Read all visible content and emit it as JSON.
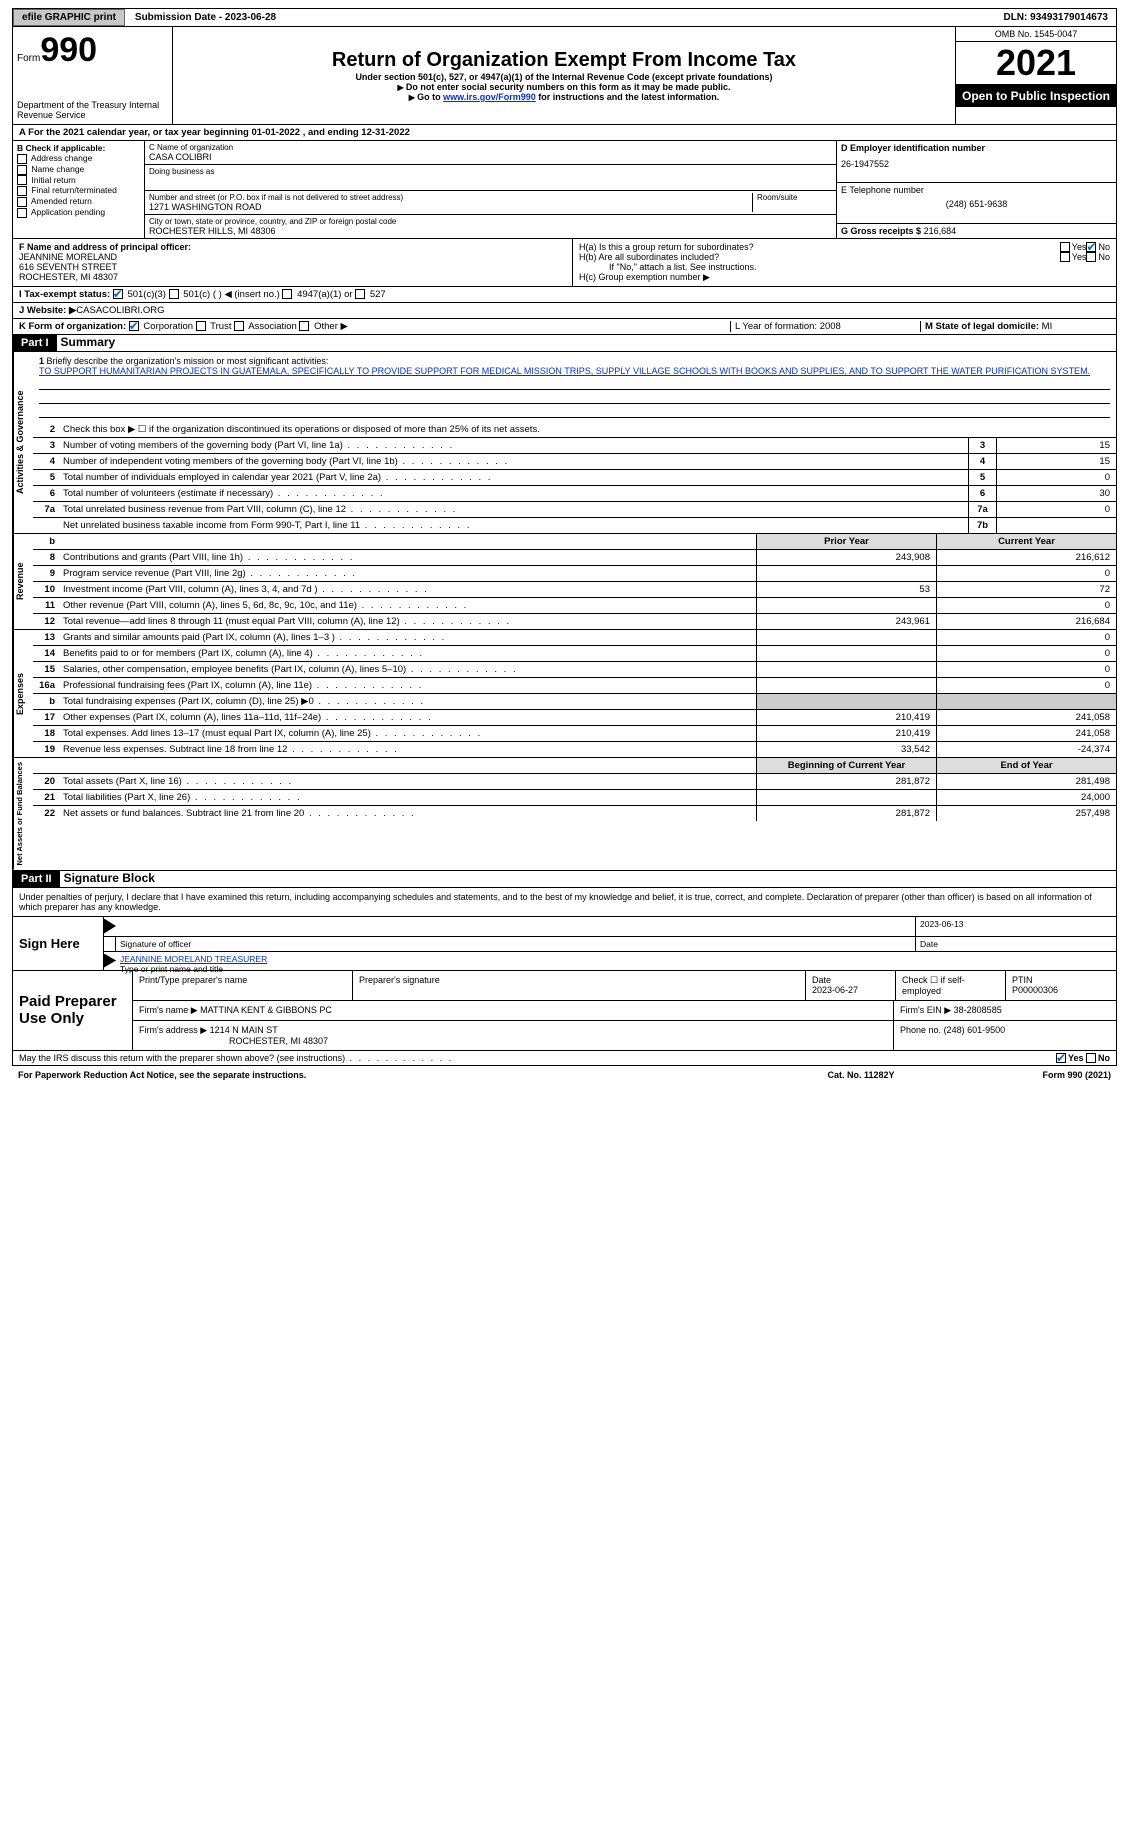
{
  "topbar": {
    "efile": "efile GRAPHIC print",
    "submission": "Submission Date - 2023-06-28",
    "dln": "DLN: 93493179014673"
  },
  "header": {
    "form_label": "Form",
    "form_no": "990",
    "dept": "Department of the Treasury\nInternal Revenue Service",
    "title": "Return of Organization Exempt From Income Tax",
    "sub1": "Under section 501(c), 527, or 4947(a)(1) of the Internal Revenue Code (except private foundations)",
    "sub2": "Do not enter social security numbers on this form as it may be made public.",
    "sub3_pre": "Go to ",
    "sub3_link": "www.irs.gov/Form990",
    "sub3_post": " for instructions and the latest information.",
    "omb": "OMB No. 1545-0047",
    "year": "2021",
    "inspect": "Open to Public Inspection"
  },
  "A": "For the 2021 calendar year, or tax year beginning 01-01-2022   , and ending 12-31-2022",
  "B": {
    "label": "B Check if applicable:",
    "items": [
      "Address change",
      "Name change",
      "Initial return",
      "Final return/terminated",
      "Amended return",
      "Application pending"
    ]
  },
  "C": {
    "name_lbl": "C Name of organization",
    "name": "CASA COLIBRI",
    "dba_lbl": "Doing business as",
    "street_lbl": "Number and street (or P.O. box if mail is not delivered to street address)",
    "room_lbl": "Room/suite",
    "street": "1271 WASHINGTON ROAD",
    "city_lbl": "City or town, state or province, country, and ZIP or foreign postal code",
    "city": "ROCHESTER HILLS, MI  48306"
  },
  "D": {
    "lbl": "D Employer identification number",
    "val": "26-1947552"
  },
  "E": {
    "lbl": "E Telephone number",
    "val": "(248) 651-9638"
  },
  "G": {
    "lbl": "G Gross receipts $",
    "val": "216,684"
  },
  "F": {
    "lbl": "F  Name and address of principal officer:",
    "name": "JEANNINE MORELAND",
    "addr1": "616 SEVENTH STREET",
    "addr2": "ROCHESTER, MI  48307"
  },
  "H": {
    "a": "H(a)  Is this a group return for subordinates?",
    "b": "H(b)  Are all subordinates included?",
    "b2": "If \"No,\" attach a list. See instructions.",
    "c": "H(c)  Group exemption number ▶",
    "yes": "Yes",
    "no": "No"
  },
  "I": {
    "lbl": "I    Tax-exempt status:",
    "o1": "501(c)(3)",
    "o2": "501(c) (  ) ◀ (insert no.)",
    "o3": "4947(a)(1) or",
    "o4": "527"
  },
  "J": {
    "lbl": "J    Website: ▶",
    "val": "CASACOLIBRI.ORG"
  },
  "K": {
    "lbl": "K Form of organization:",
    "o1": "Corporation",
    "o2": "Trust",
    "o3": "Association",
    "o4": "Other ▶"
  },
  "L": {
    "lbl": "L Year of formation:",
    "val": "2008"
  },
  "M": {
    "lbl": "M State of legal domicile:",
    "val": "MI"
  },
  "part1": {
    "bar": "Part I",
    "title": "Summary"
  },
  "mission_lbl": "Briefly describe the organization's mission or most significant activities:",
  "mission": "TO SUPPORT HUMANITARIAN PROJECTS IN GUATEMALA, SPECIFICALLY TO PROVIDE SUPPORT FOR MEDICAL MISSION TRIPS, SUPPLY VILLAGE SCHOOLS WITH BOOKS AND SUPPLIES, AND TO SUPPORT THE WATER PURIFICATION SYSTEM.",
  "line2": "Check this box ▶ ☐ if the organization discontinued its operations or disposed of more than 25% of its net assets.",
  "gov": [
    {
      "n": "3",
      "t": "Number of voting members of the governing body (Part VI, line 1a)",
      "b": "3",
      "v": "15"
    },
    {
      "n": "4",
      "t": "Number of independent voting members of the governing body (Part VI, line 1b)",
      "b": "4",
      "v": "15"
    },
    {
      "n": "5",
      "t": "Total number of individuals employed in calendar year 2021 (Part V, line 2a)",
      "b": "5",
      "v": "0"
    },
    {
      "n": "6",
      "t": "Total number of volunteers (estimate if necessary)",
      "b": "6",
      "v": "30"
    },
    {
      "n": "7a",
      "t": "Total unrelated business revenue from Part VIII, column (C), line 12",
      "b": "7a",
      "v": "0"
    },
    {
      "n": "",
      "t": "Net unrelated business taxable income from Form 990-T, Part I, line 11",
      "b": "7b",
      "v": ""
    }
  ],
  "colhead": {
    "prior": "Prior Year",
    "cur": "Current Year"
  },
  "rev": [
    {
      "n": "8",
      "t": "Contributions and grants (Part VIII, line 1h)",
      "p": "243,908",
      "c": "216,612"
    },
    {
      "n": "9",
      "t": "Program service revenue (Part VIII, line 2g)",
      "p": "",
      "c": "0"
    },
    {
      "n": "10",
      "t": "Investment income (Part VIII, column (A), lines 3, 4, and 7d )",
      "p": "53",
      "c": "72"
    },
    {
      "n": "11",
      "t": "Other revenue (Part VIII, column (A), lines 5, 6d, 8c, 9c, 10c, and 11e)",
      "p": "",
      "c": "0"
    },
    {
      "n": "12",
      "t": "Total revenue—add lines 8 through 11 (must equal Part VIII, column (A), line 12)",
      "p": "243,961",
      "c": "216,684"
    }
  ],
  "exp": [
    {
      "n": "13",
      "t": "Grants and similar amounts paid (Part IX, column (A), lines 1–3 )",
      "p": "",
      "c": "0"
    },
    {
      "n": "14",
      "t": "Benefits paid to or for members (Part IX, column (A), line 4)",
      "p": "",
      "c": "0"
    },
    {
      "n": "15",
      "t": "Salaries, other compensation, employee benefits (Part IX, column (A), lines 5–10)",
      "p": "",
      "c": "0"
    },
    {
      "n": "16a",
      "t": "Professional fundraising fees (Part IX, column (A), line 11e)",
      "p": "",
      "c": "0"
    },
    {
      "n": "b",
      "t": "Total fundraising expenses (Part IX, column (D), line 25) ▶0",
      "p": "grey",
      "c": "grey"
    },
    {
      "n": "17",
      "t": "Other expenses (Part IX, column (A), lines 11a–11d, 11f–24e)",
      "p": "210,419",
      "c": "241,058"
    },
    {
      "n": "18",
      "t": "Total expenses. Add lines 13–17 (must equal Part IX, column (A), line 25)",
      "p": "210,419",
      "c": "241,058"
    },
    {
      "n": "19",
      "t": "Revenue less expenses. Subtract line 18 from line 12",
      "p": "33,542",
      "c": "-24,374"
    }
  ],
  "colhead2": {
    "prior": "Beginning of Current Year",
    "cur": "End of Year"
  },
  "net": [
    {
      "n": "20",
      "t": "Total assets (Part X, line 16)",
      "p": "281,872",
      "c": "281,498"
    },
    {
      "n": "21",
      "t": "Total liabilities (Part X, line 26)",
      "p": "",
      "c": "24,000"
    },
    {
      "n": "22",
      "t": "Net assets or fund balances. Subtract line 21 from line 20",
      "p": "281,872",
      "c": "257,498"
    }
  ],
  "vlabels": {
    "gov": "Activities & Governance",
    "rev": "Revenue",
    "exp": "Expenses",
    "net": "Net Assets or Fund Balances"
  },
  "part2": {
    "bar": "Part II",
    "title": "Signature Block"
  },
  "declare": "Under penalties of perjury, I declare that I have examined this return, including accompanying schedules and statements, and to the best of my knowledge and belief, it is true, correct, and complete. Declaration of preparer (other than officer) is based on all information of which preparer has any knowledge.",
  "sign": {
    "here": "Sign Here",
    "sig_lbl": "Signature of officer",
    "date": "2023-06-13",
    "date_lbl": "Date",
    "name": "JEANNINE MORELAND  TREASURER",
    "name_lbl": "Type or print name and title"
  },
  "prep": {
    "here": "Paid Preparer Use Only",
    "name_lbl": "Print/Type preparer's name",
    "sig_lbl": "Preparer's signature",
    "date_lbl": "Date",
    "date": "2023-06-27",
    "self_lbl": "Check ☐ if self-employed",
    "ptin_lbl": "PTIN",
    "ptin": "P00000306",
    "firm_lbl": "Firm's name   ▶",
    "firm": "MATTINA KENT & GIBBONS PC",
    "ein_lbl": "Firm's EIN ▶",
    "ein": "38-2808585",
    "addr_lbl": "Firm's address ▶",
    "addr1": "1214 N MAIN ST",
    "addr2": "ROCHESTER, MI  48307",
    "phone_lbl": "Phone no.",
    "phone": "(248) 601-9500"
  },
  "discuss": "May the IRS discuss this return with the preparer shown above? (see instructions)",
  "foot": {
    "l": "For Paperwork Reduction Act Notice, see the separate instructions.",
    "c": "Cat. No. 11282Y",
    "r": "Form 990 (2021)"
  }
}
